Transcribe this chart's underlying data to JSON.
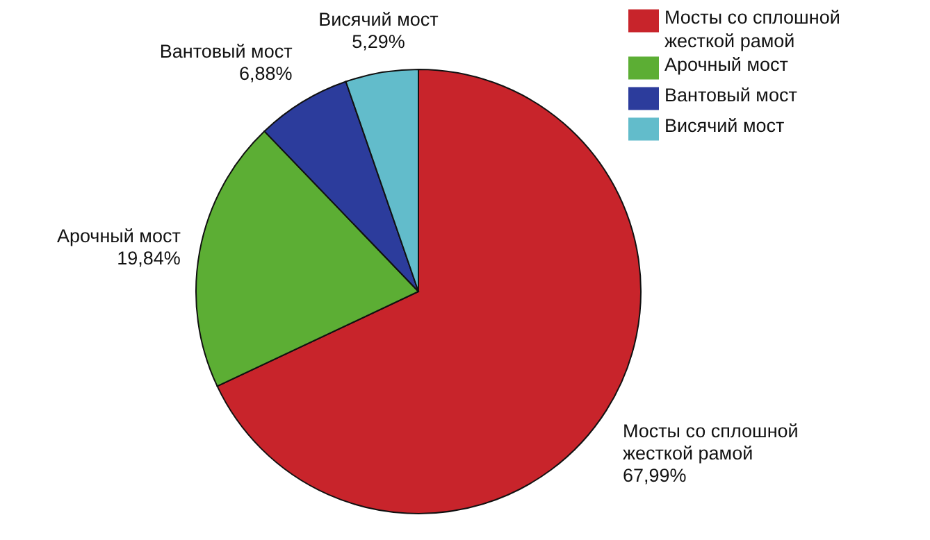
{
  "chart_data": {
    "type": "pie",
    "categories": [
      "Мосты со сплошной жесткой рамой",
      "Арочный мост",
      "Вантовый мост",
      "Висячий мост"
    ],
    "values": [
      67.99,
      19.84,
      6.88,
      5.29
    ],
    "value_labels": [
      "67,99%",
      "19,84%",
      "6,88%",
      "5,29%"
    ],
    "colors": [
      "#c8242b",
      "#5cae34",
      "#2c3c9c",
      "#62bccb"
    ],
    "legend": "top right"
  }
}
